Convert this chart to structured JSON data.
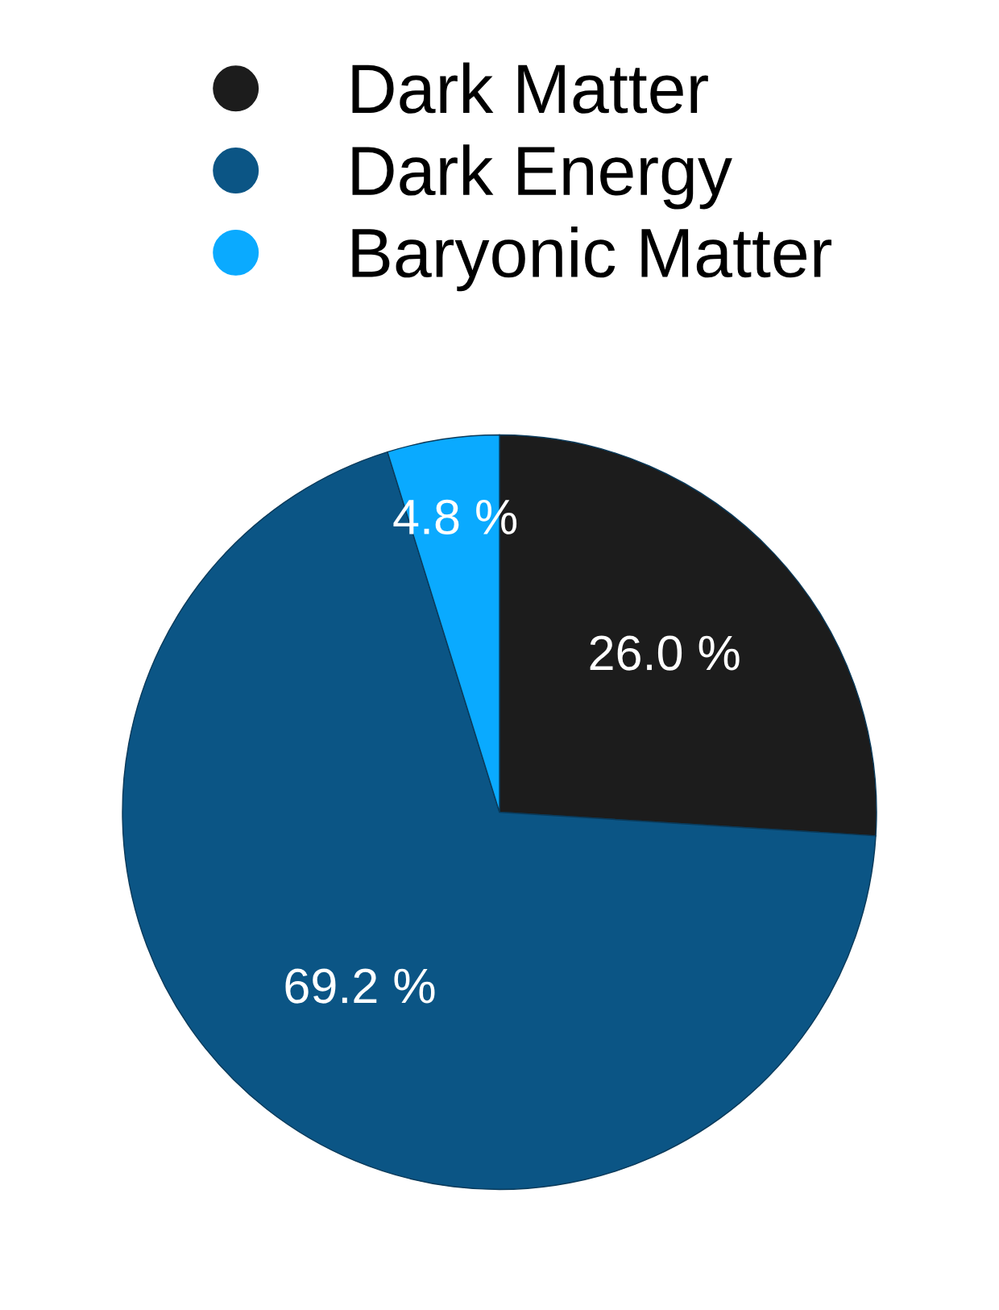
{
  "chart_data": {
    "type": "pie",
    "categories": [
      "Dark Matter",
      "Dark Energy",
      "Baryonic Matter"
    ],
    "values": [
      26.0,
      69.2,
      4.8
    ],
    "colors": [
      "#1c1c1c",
      "#0b5585",
      "#0aaaff"
    ],
    "value_labels": [
      "26.0 %",
      "69.2 %",
      "4.8 %"
    ],
    "legend": "top"
  }
}
